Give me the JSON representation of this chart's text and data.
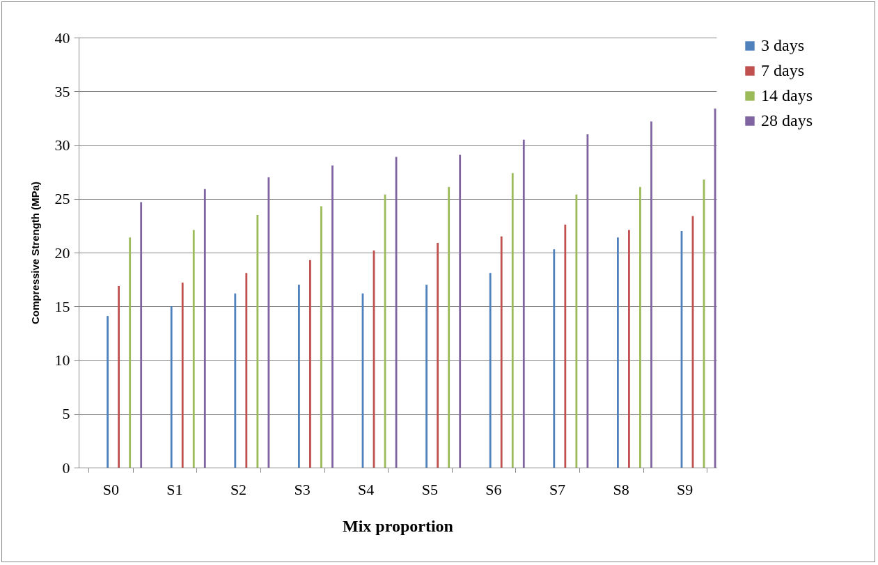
{
  "chart_data": {
    "type": "bar",
    "xlabel": "Mix proportion",
    "ylabel": "Compressive Strength (MPa)",
    "categories": [
      "S0",
      "S1",
      "S2",
      "S3",
      "S4",
      "S5",
      "S6",
      "S7",
      "S8",
      "S9"
    ],
    "series": [
      {
        "name": "3 days",
        "color": "#4f81bd",
        "values": [
          14.1,
          15.0,
          16.2,
          17.0,
          16.2,
          17.0,
          18.1,
          20.3,
          21.4,
          22.0
        ]
      },
      {
        "name": "7 days",
        "color": "#c0504d",
        "values": [
          16.9,
          17.2,
          18.1,
          19.3,
          20.2,
          20.9,
          21.5,
          22.6,
          22.1,
          23.4
        ]
      },
      {
        "name": "14 days",
        "color": "#9bbb59",
        "values": [
          21.4,
          22.1,
          23.5,
          24.3,
          25.4,
          26.1,
          27.4,
          25.4,
          26.1,
          26.8
        ]
      },
      {
        "name": "28 days",
        "color": "#8064a2",
        "values": [
          24.7,
          25.9,
          27.0,
          28.1,
          28.9,
          29.1,
          30.5,
          31.0,
          32.2,
          33.4
        ]
      }
    ],
    "ylim": [
      0,
      40
    ],
    "yticks": [
      0,
      5,
      10,
      15,
      20,
      25,
      30,
      35,
      40
    ],
    "grid": "y",
    "legend": "right"
  }
}
